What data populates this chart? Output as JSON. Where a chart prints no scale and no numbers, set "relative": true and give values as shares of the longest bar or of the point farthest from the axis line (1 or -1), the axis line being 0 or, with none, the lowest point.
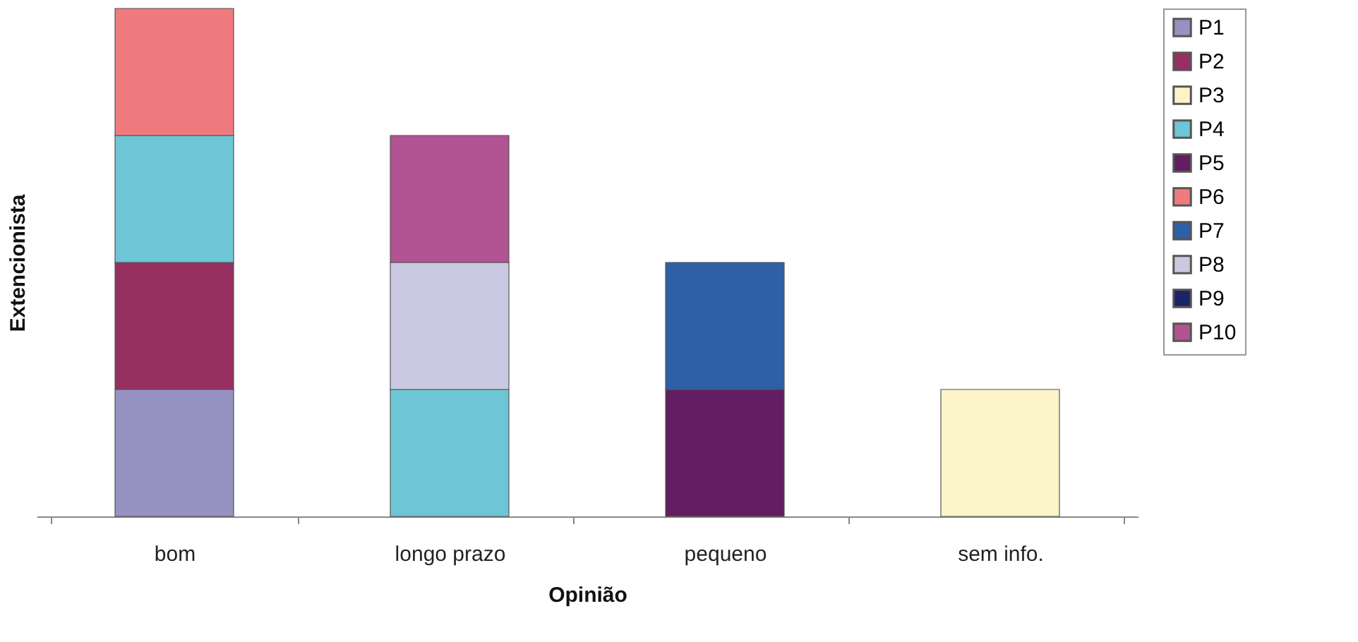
{
  "chart_data": {
    "type": "bar",
    "stacked": true,
    "relative": true,
    "xlabel": "Opinião",
    "ylabel": "Extencionista",
    "categories": [
      "bom",
      "longo prazo",
      "pequeno",
      "sem info."
    ],
    "legend": "right",
    "grid": false,
    "series": [
      {
        "name": "P1",
        "color": "#9693c3",
        "values": [
          0.25,
          null,
          null,
          null
        ]
      },
      {
        "name": "P2",
        "color": "#963060",
        "values": [
          0.25,
          null,
          null,
          null
        ]
      },
      {
        "name": "P3",
        "color": "#fbf4c8",
        "values": [
          null,
          null,
          null,
          0.25
        ]
      },
      {
        "name": "P4",
        "color": "#6ec5d6",
        "values": [
          0.25,
          0.25,
          null,
          null
        ]
      },
      {
        "name": "P5",
        "color": "#621e60",
        "values": [
          null,
          null,
          0.25,
          null
        ]
      },
      {
        "name": "P6",
        "color": "#ef7b7e",
        "values": [
          0.25,
          null,
          null,
          null
        ]
      },
      {
        "name": "P7",
        "color": "#2e60a6",
        "values": [
          null,
          null,
          0.25,
          null
        ]
      },
      {
        "name": "P8",
        "color": "#cbc9e2",
        "values": [
          null,
          0.25,
          null,
          null
        ]
      },
      {
        "name": "P9",
        "color": "#1c2468",
        "values": [
          null,
          null,
          null,
          null
        ]
      },
      {
        "name": "P10",
        "color": "#b25393",
        "values": [
          null,
          0.25,
          null,
          null
        ]
      }
    ]
  }
}
